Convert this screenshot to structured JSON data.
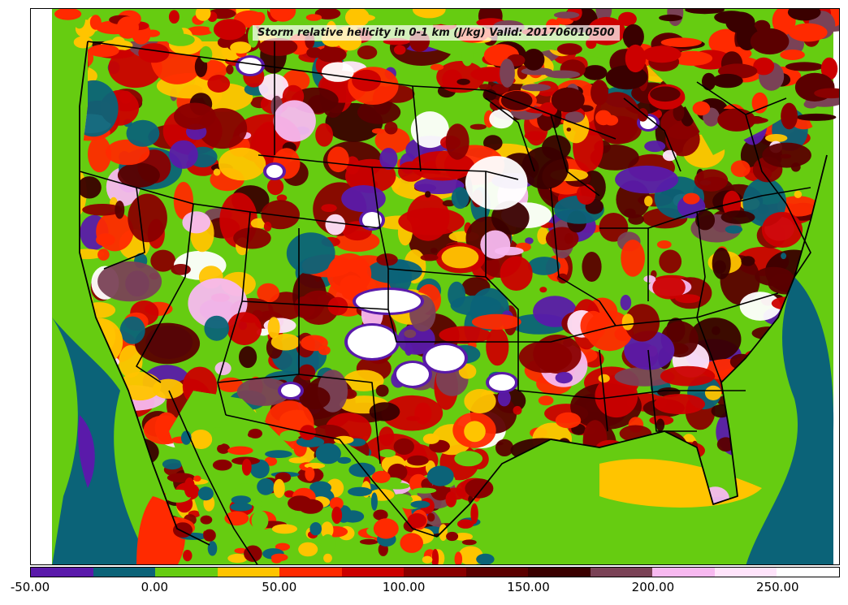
{
  "title": "Storm relative helicity in 0-1 km (J/kg) Valid: 201706010500",
  "colorbar": {
    "min": -50,
    "max": 275,
    "step": 25,
    "colors": [
      "#5a1aaa",
      "#0b6378",
      "#66cc11",
      "#ffc400",
      "#ff2a00",
      "#cc0000",
      "#8a0000",
      "#5b0000",
      "#3a0000",
      "#7a4256",
      "#f7b9f0",
      "#ffe4fb",
      "#ffffff"
    ],
    "tick_labels": [
      "-50.00",
      "0.00",
      "50.00",
      "100.00",
      "150.00",
      "200.00",
      "250.00"
    ]
  },
  "map": {
    "projection": "Lambert conformal over contiguous United States",
    "features": [
      "state-boundaries",
      "country-boundaries",
      "coastlines",
      "great-lakes"
    ],
    "ocean_color": "#66cc11",
    "offshore_band_color": "#0b6378"
  }
}
